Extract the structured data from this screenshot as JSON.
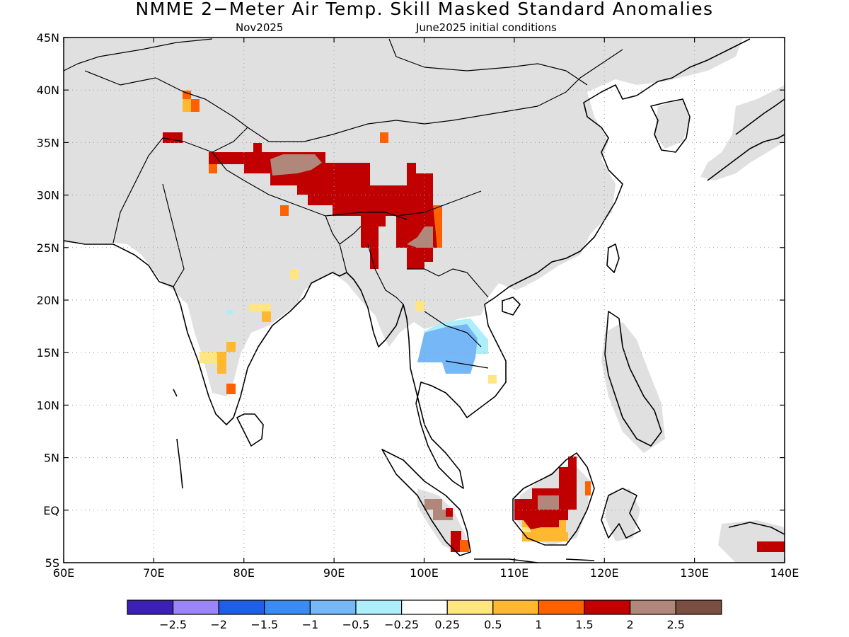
{
  "title": "NMME 2−Meter Air Temp. Skill Masked Standard Anomalies",
  "subtitle_left": "Nov2025",
  "subtitle_right": "June2025 initial conditions",
  "map": {
    "lon_range": [
      60,
      140
    ],
    "lat_range": [
      -5,
      45
    ],
    "lon_ticks": [
      "60E",
      "70E",
      "80E",
      "90E",
      "100E",
      "110E",
      "120E",
      "130E",
      "140E"
    ],
    "lat_ticks": [
      "45N",
      "40N",
      "35N",
      "30N",
      "25N",
      "20N",
      "15N",
      "10N",
      "5N",
      "EQ",
      "5S"
    ],
    "masked_color": "#e0e0e0",
    "grid": "dotted"
  },
  "legend": {
    "colors": [
      "#3c20b4",
      "#9b86f5",
      "#1f5fe6",
      "#3a8cf0",
      "#76b7f7",
      "#aeeefa",
      "#ffffff",
      "#ffe680",
      "#ffb830",
      "#ff6100",
      "#c00000",
      "#b0877a",
      "#7a4f42"
    ],
    "labels": [
      "−2.5",
      "−2",
      "−1.5",
      "−1",
      "−0.5",
      "−0.25",
      "0.25",
      "0.5",
      "1",
      "1.5",
      "2",
      "2.5"
    ]
  }
}
